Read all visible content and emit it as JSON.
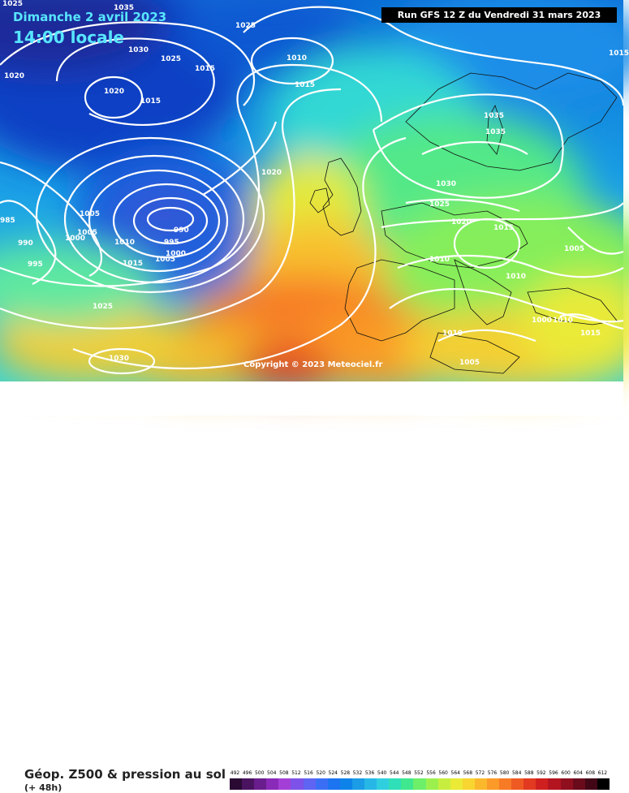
{
  "header": {
    "date": "Dimanche 2 avril 2023",
    "time": "14:00 locale",
    "run": "Run GFS 12 Z du Vendredi 31 mars 2023"
  },
  "copyright": "Copyright © 2023 Meteociel.fr",
  "footer": {
    "title": "Géop. Z500 & pression au sol",
    "subtitle": "(+ 48h)"
  },
  "legend": {
    "values": [
      "492",
      "496",
      "500",
      "504",
      "508",
      "512",
      "516",
      "520",
      "524",
      "528",
      "532",
      "536",
      "540",
      "544",
      "548",
      "552",
      "556",
      "560",
      "564",
      "568",
      "572",
      "576",
      "580",
      "584",
      "588",
      "592",
      "596",
      "600",
      "604",
      "608",
      "612"
    ],
    "colors": [
      "#2a0a33",
      "#4a1360",
      "#6a1d8c",
      "#8a2ab8",
      "#a33fd6",
      "#7d52e8",
      "#5f64f2",
      "#3a6ff5",
      "#1c74f0",
      "#0d83ea",
      "#1a9ce6",
      "#27b7e6",
      "#30cfe0",
      "#2fdfb8",
      "#3fe88f",
      "#6def6a",
      "#9cf04e",
      "#c7ee3f",
      "#eaea37",
      "#f8d531",
      "#fbb82c",
      "#fb9a28",
      "#f77a25",
      "#ef5a22",
      "#e23a20",
      "#cf201f",
      "#b3141f",
      "#8f0f1f",
      "#6a0b1c",
      "#420717",
      "#000000"
    ]
  },
  "isobars": [
    {
      "label": "1035"
    },
    {
      "label": "1025"
    },
    {
      "label": "1025"
    },
    {
      "label": "1030"
    },
    {
      "label": "1025"
    },
    {
      "label": "1020"
    },
    {
      "label": "1015"
    },
    {
      "label": "1010"
    },
    {
      "label": "1015"
    },
    {
      "label": "1020"
    },
    {
      "label": "1015"
    },
    {
      "label": "1035"
    },
    {
      "label": "1035"
    },
    {
      "label": "1020"
    },
    {
      "label": "1030"
    },
    {
      "label": "1025"
    },
    {
      "label": "1020"
    },
    {
      "label": "1015"
    },
    {
      "label": "985"
    },
    {
      "label": "990"
    },
    {
      "label": "995"
    },
    {
      "label": "1005"
    },
    {
      "label": "1005"
    },
    {
      "label": "1000"
    },
    {
      "label": "1010"
    },
    {
      "label": "1015"
    },
    {
      "label": "1005"
    },
    {
      "label": "1000"
    },
    {
      "label": "995"
    },
    {
      "label": "990"
    },
    {
      "label": "1025"
    },
    {
      "label": "1030"
    },
    {
      "label": "1010"
    },
    {
      "label": "1010"
    },
    {
      "label": "1005"
    },
    {
      "label": "1010"
    },
    {
      "label": "1010"
    },
    {
      "label": "1005"
    },
    {
      "label": "1000"
    },
    {
      "label": "1015"
    },
    {
      "label": "1015"
    }
  ]
}
